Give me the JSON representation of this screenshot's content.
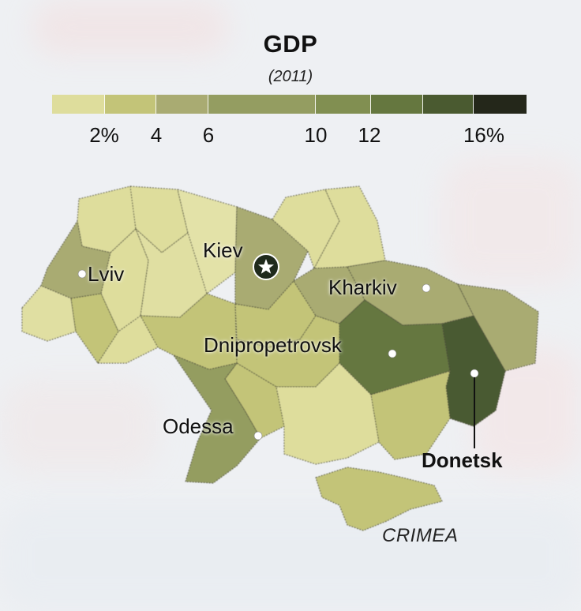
{
  "title": "GDP",
  "subtitle": "(2011)",
  "legend": {
    "swatches": [
      "#dedd9c",
      "#c3c478",
      "#a9ab72",
      "#949d61",
      "#818f51",
      "#65773f",
      "#4a5a30",
      "#24271a"
    ],
    "ticks": [
      "2%",
      "4",
      "6",
      "10",
      "12",
      "16%"
    ]
  },
  "cities": {
    "kiev": "Kiev",
    "lviv": "Lviv",
    "kharkiv": "Kharkiv",
    "dnipropetrovsk": "Dnipropetrovsk",
    "odessa": "Odessa",
    "donetsk": "Donetsk"
  },
  "region_labels": {
    "crimea": "CRIMEA"
  },
  "colors": {
    "capital_marker": "#1f2a1c",
    "city_dot": "#ffffff",
    "region_border": "#4a4a3a"
  }
}
